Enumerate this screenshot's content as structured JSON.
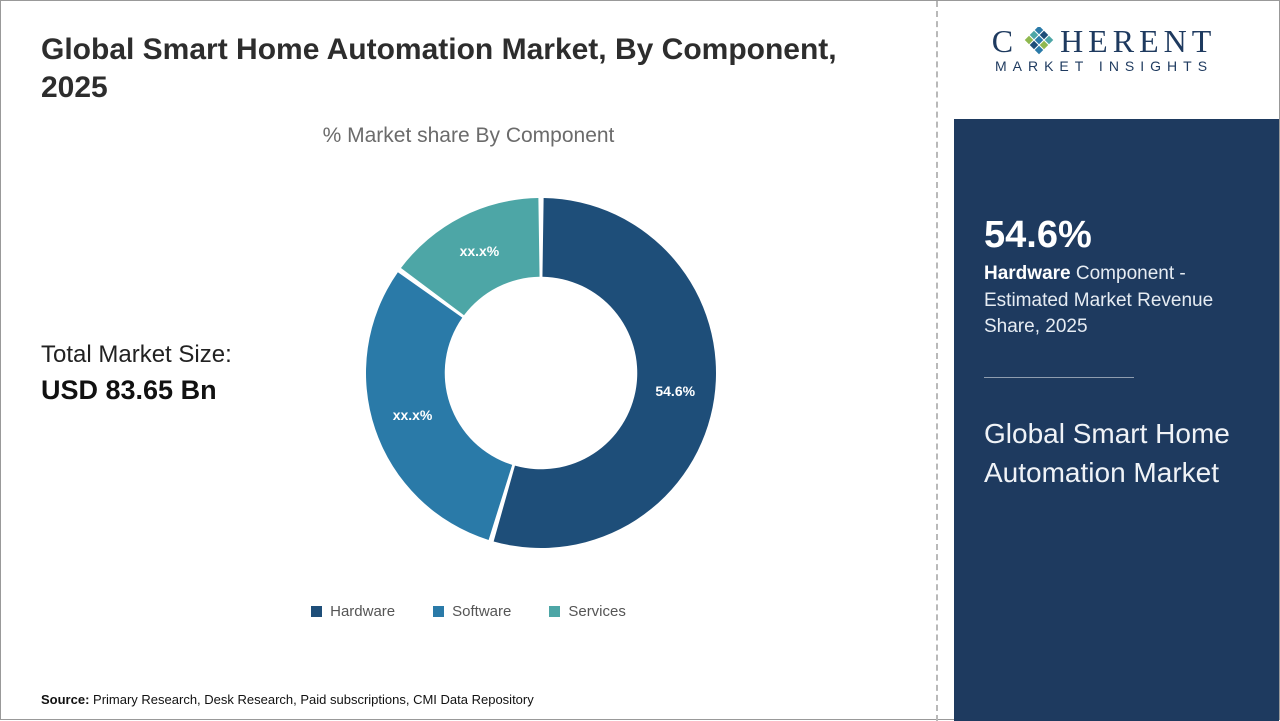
{
  "header": {
    "title": "Global Smart Home Automation Market, By Component, 2025"
  },
  "chart": {
    "type": "donut",
    "subtitle": "% Market share By Component",
    "series": [
      {
        "name": "Hardware",
        "value": 54.6,
        "label": "54.6%",
        "color": "#1e4e79"
      },
      {
        "name": "Software",
        "value": 30.4,
        "label": "xx.x%",
        "color": "#2a7aa8"
      },
      {
        "name": "Services",
        "value": 15.0,
        "label": "xx.x%",
        "color": "#4da6a6"
      }
    ],
    "inner_radius_ratio": 0.55,
    "outer_radius": 175,
    "background_color": "#ffffff",
    "label_fontsize": 14,
    "label_color": "#ffffff"
  },
  "market_size": {
    "label": "Total Market Size:",
    "value": "USD 83.65 Bn"
  },
  "legend": [
    {
      "label": "Hardware",
      "color": "#1e4e79"
    },
    {
      "label": "Software",
      "color": "#2a7aa8"
    },
    {
      "label": "Services",
      "color": "#4da6a6"
    }
  ],
  "source": {
    "prefix": "Source:",
    "text": "Primary Research, Desk Research, Paid subscriptions, CMI Data Repository"
  },
  "logo": {
    "main_left": "C",
    "main_right": "HERENT",
    "sub": "MARKET INSIGHTS",
    "icon_colors": [
      "#2a7aa8",
      "#4da6a6",
      "#1e4e79",
      "#8fb84f"
    ]
  },
  "side_panel": {
    "background": "#1e3a5f",
    "stat_value": "54.6%",
    "stat_bold": "Hardware",
    "stat_rest": " Component - Estimated Market Revenue Share, 2025",
    "title": "Global Smart Home Automation Market"
  }
}
